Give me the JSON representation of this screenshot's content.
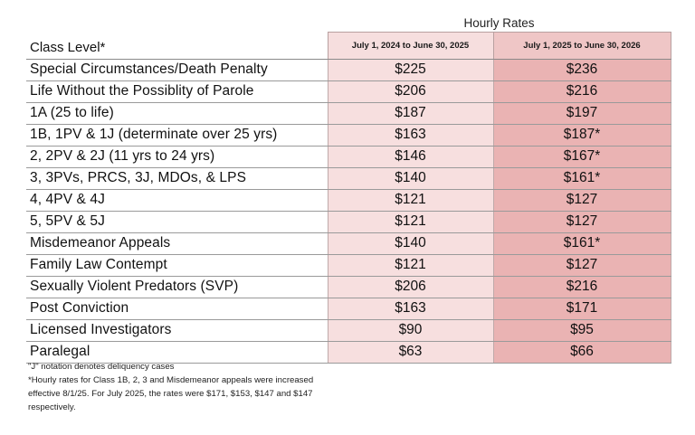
{
  "header": {
    "group_label": "Hourly Rates",
    "class_level_label": "Class Level*",
    "period_1": "July 1, 2024 to June 30, 2025",
    "period_2": "July 1, 2025 to June 30, 2026"
  },
  "rows": [
    {
      "class": "Special Circumstances/Death Penalty",
      "rate_2024": "$225",
      "rate_2025": "$236"
    },
    {
      "class": "Life Without the Possiblity of Parole",
      "rate_2024": "$206",
      "rate_2025": "$216"
    },
    {
      "class": "1A (25 to life)",
      "rate_2024": "$187",
      "rate_2025": "$197"
    },
    {
      "class": "1B, 1PV & 1J (determinate over 25 yrs)",
      "rate_2024": "$163",
      "rate_2025": "$187*"
    },
    {
      "class": "2, 2PV & 2J (11 yrs to 24 yrs)",
      "rate_2024": "$146",
      "rate_2025": "$167*"
    },
    {
      "class": "3, 3PVs, PRCS, 3J, MDOs, & LPS",
      "rate_2024": "$140",
      "rate_2025": "$161*"
    },
    {
      "class": "4, 4PV & 4J",
      "rate_2024": "$121",
      "rate_2025": "$127"
    },
    {
      "class": "5, 5PV & 5J",
      "rate_2024": "$121",
      "rate_2025": "$127"
    },
    {
      "class": "Misdemeanor Appeals",
      "rate_2024": "$140",
      "rate_2025": "$161*"
    },
    {
      "class": "Family Law Contempt",
      "rate_2024": "$121",
      "rate_2025": "$127"
    },
    {
      "class": "Sexually Violent Predators (SVP)",
      "rate_2024": "$206",
      "rate_2025": "$216"
    },
    {
      "class": "Post Conviction",
      "rate_2024": "$163",
      "rate_2025": "$171"
    },
    {
      "class": "Licensed Investigators",
      "rate_2024": "$90",
      "rate_2025": "$95"
    },
    {
      "class": "Paralegal",
      "rate_2024": "$63",
      "rate_2025": "$66"
    }
  ],
  "notes": {
    "note_1": "\"J\" notation  denotes deliquency cases",
    "note_2": "*Hourly rates for Class 1B, 2, 3 and Misdemeanor appeals were increased effective 8/1/25. For July 2025, the rates were $171, $153, $147 and $147 respectively."
  },
  "colors": {
    "period_1_fill": "#f7dfdf",
    "period_2_fill": "#eab3b3"
  }
}
